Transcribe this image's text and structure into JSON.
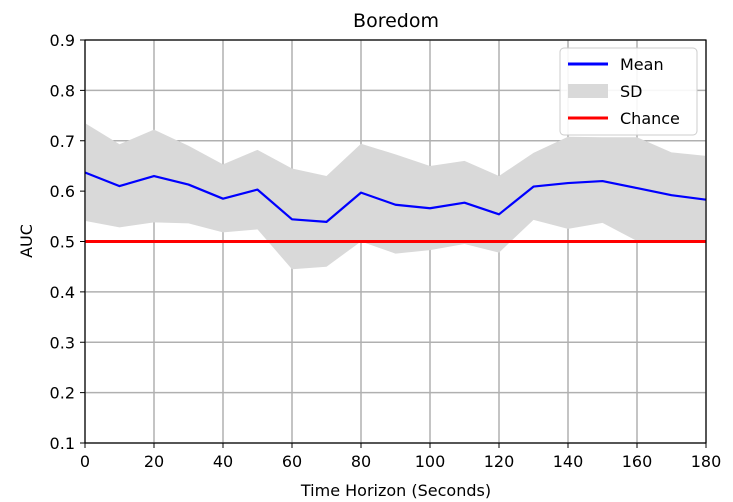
{
  "chart_data": {
    "type": "line",
    "title": "Boredom",
    "xlabel": "Time Horizon (Seconds)",
    "ylabel": "AUC",
    "xlim": [
      0,
      180
    ],
    "ylim": [
      0.1,
      0.9
    ],
    "xticks": [
      "0",
      "20",
      "40",
      "60",
      "80",
      "100",
      "120",
      "140",
      "160",
      "180"
    ],
    "yticks": [
      "0.1",
      "0.2",
      "0.3",
      "0.4",
      "0.5",
      "0.6",
      "0.7",
      "0.8",
      "0.9"
    ],
    "grid": true,
    "legend_position": "top-right",
    "x": [
      0,
      10,
      20,
      30,
      40,
      50,
      60,
      70,
      80,
      90,
      100,
      110,
      120,
      130,
      140,
      150,
      160,
      170,
      180
    ],
    "series": [
      {
        "name": "Mean",
        "kind": "line",
        "color": "#0000ff",
        "values": [
          0.637,
          0.61,
          0.63,
          0.613,
          0.585,
          0.603,
          0.544,
          0.539,
          0.597,
          0.573,
          0.566,
          0.577,
          0.554,
          0.609,
          0.616,
          0.62,
          0.606,
          0.592,
          0.583
        ]
      },
      {
        "name": "SD",
        "kind": "band",
        "color": "#d9d9d9",
        "upper": [
          0.735,
          0.693,
          0.722,
          0.69,
          0.653,
          0.682,
          0.645,
          0.63,
          0.694,
          0.673,
          0.65,
          0.66,
          0.63,
          0.676,
          0.708,
          0.707,
          0.707,
          0.677,
          0.67
        ],
        "lower": [
          0.541,
          0.528,
          0.538,
          0.536,
          0.518,
          0.524,
          0.445,
          0.45,
          0.5,
          0.476,
          0.483,
          0.495,
          0.478,
          0.543,
          0.525,
          0.537,
          0.501,
          0.5,
          0.5
        ]
      },
      {
        "name": "Chance",
        "kind": "hline",
        "color": "#ff0000",
        "value": 0.5
      }
    ]
  }
}
